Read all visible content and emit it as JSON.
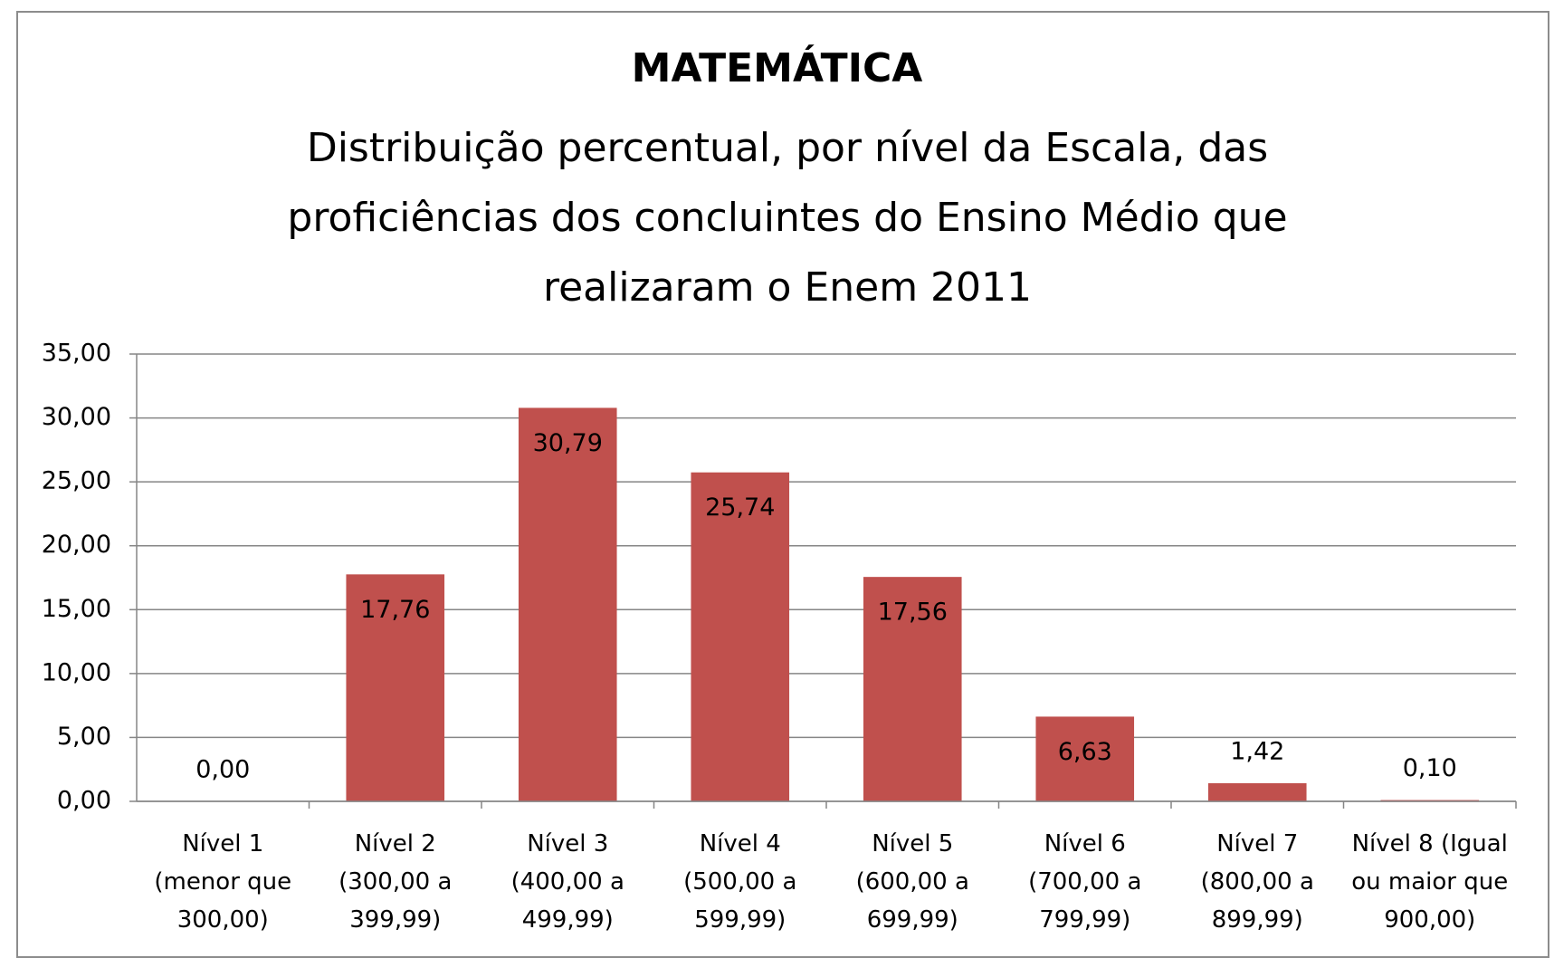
{
  "chart_data": {
    "type": "bar",
    "title": "MATEMÁTICA",
    "subtitle": "Distribuição percentual, por nível da Escala, das proficiências dos concluintes do Ensino Médio que realizaram o Enem 2011",
    "categories": [
      "Nível 1 (menor que 300,00)",
      "Nível 2 (300,00 a 399,99)",
      "Nível 3 (400,00 a 499,99)",
      "Nível 4 (500,00 a 599,99)",
      "Nível 5 (600,00 a 699,99)",
      "Nível 6 (700,00 a 799,99)",
      "Nível 7 (800,00 a 899,99)",
      "Nível 8 (Igual ou maior que 900,00)"
    ],
    "values": [
      0,
      17.76,
      30.79,
      25.74,
      17.56,
      6.63,
      1.42,
      0.1
    ],
    "value_labels": [
      "0,00",
      "17,76",
      "30,79",
      "25,74",
      "17,56",
      "6,63",
      "1,42",
      "0,10"
    ],
    "color": "#c0504d",
    "ylim": [
      0,
      35
    ],
    "yticks": [
      {
        "value": 0,
        "label": "0,00"
      },
      {
        "value": 5,
        "label": "5,00"
      },
      {
        "value": 10,
        "label": "10,00"
      },
      {
        "value": 15,
        "label": "15,00"
      },
      {
        "value": 20,
        "label": "20,00"
      },
      {
        "value": 25,
        "label": "25,00"
      },
      {
        "value": 30,
        "label": "30,00"
      },
      {
        "value": 35,
        "label": "35,00"
      }
    ],
    "grid": true
  }
}
